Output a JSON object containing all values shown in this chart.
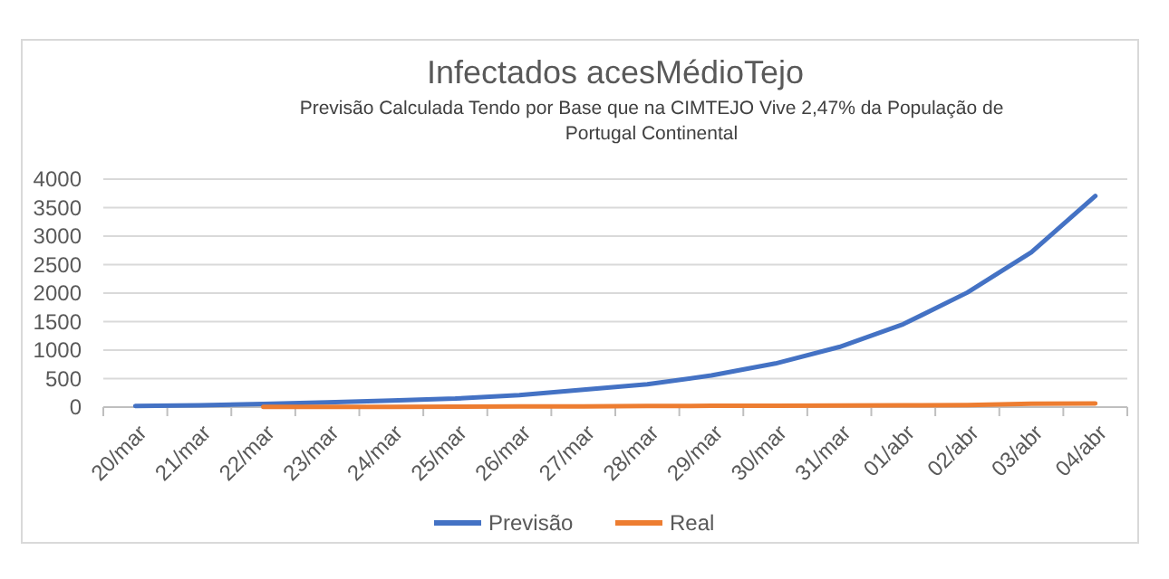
{
  "chart_data": {
    "type": "line",
    "title": "Infectados acesMédioTejo",
    "subtitle": "Previsão Calculada Tendo por Base que na CIMTEJO Vive 2,47% da População de Portugal Continental",
    "categories": [
      "20/mar",
      "21/mar",
      "22/mar",
      "23/mar",
      "24/mar",
      "25/mar",
      "26/mar",
      "27/mar",
      "28/mar",
      "29/mar",
      "30/mar",
      "31/mar",
      "01/abr",
      "02/abr",
      "03/abr",
      "04/abr"
    ],
    "series": [
      {
        "name": "Previsão",
        "color": "#4472c4",
        "values": [
          20,
          30,
          55,
          85,
          115,
          150,
          210,
          305,
          400,
          555,
          765,
          1055,
          1455,
          2010,
          2715,
          3705
        ]
      },
      {
        "name": "Real",
        "color": "#ed7d31",
        "values": [
          null,
          null,
          2,
          3,
          5,
          8,
          10,
          12,
          20,
          22,
          25,
          28,
          30,
          35,
          60,
          65
        ]
      }
    ],
    "ylim": [
      0,
      4000
    ],
    "yticks": [
      0,
      500,
      1000,
      1500,
      2000,
      2500,
      3000,
      3500,
      4000
    ],
    "grid": "y",
    "legend": "bottom",
    "marker": "none",
    "line_style": "solid"
  }
}
